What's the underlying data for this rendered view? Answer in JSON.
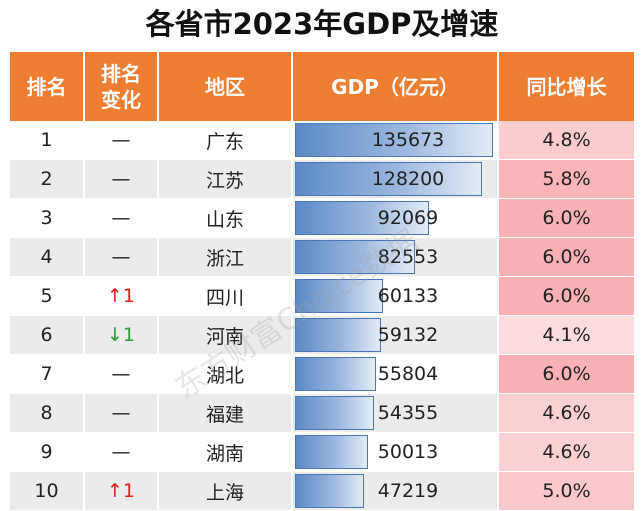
{
  "title": "各省市2023年GDP及增速",
  "headers": [
    "排名",
    "排名\n变化",
    "地区",
    "GDP（亿元）",
    "同比增长"
  ],
  "max_gdp": 135673,
  "rows": [
    {
      "rank": "1",
      "change": "—",
      "dir": "none",
      "region": "广东",
      "gdp": "135673",
      "gdp_num": 135673,
      "growth": "4.8%",
      "growth_num": 4.8
    },
    {
      "rank": "2",
      "change": "—",
      "dir": "none",
      "region": "江苏",
      "gdp": "128200",
      "gdp_num": 128200,
      "growth": "5.8%",
      "growth_num": 5.8
    },
    {
      "rank": "3",
      "change": "—",
      "dir": "none",
      "region": "山东",
      "gdp": "92069",
      "gdp_num": 92069,
      "growth": "6.0%",
      "growth_num": 6.0
    },
    {
      "rank": "4",
      "change": "—",
      "dir": "none",
      "region": "浙江",
      "gdp": "82553",
      "gdp_num": 82553,
      "growth": "6.0%",
      "growth_num": 6.0
    },
    {
      "rank": "5",
      "change": "↑1",
      "dir": "up",
      "region": "四川",
      "gdp": "60133",
      "gdp_num": 60133,
      "growth": "6.0%",
      "growth_num": 6.0
    },
    {
      "rank": "6",
      "change": "↓1",
      "dir": "down",
      "region": "河南",
      "gdp": "59132",
      "gdp_num": 59132,
      "growth": "4.1%",
      "growth_num": 4.1
    },
    {
      "rank": "7",
      "change": "—",
      "dir": "none",
      "region": "湖北",
      "gdp": "55804",
      "gdp_num": 55804,
      "growth": "6.0%",
      "growth_num": 6.0
    },
    {
      "rank": "8",
      "change": "—",
      "dir": "none",
      "region": "福建",
      "gdp": "54355",
      "gdp_num": 54355,
      "growth": "4.6%",
      "growth_num": 4.6
    },
    {
      "rank": "9",
      "change": "—",
      "dir": "none",
      "region": "湖南",
      "gdp": "50013",
      "gdp_num": 50013,
      "growth": "4.6%",
      "growth_num": 4.6
    },
    {
      "rank": "10",
      "change": "↑1",
      "dir": "up",
      "region": "上海",
      "gdp": "47219",
      "gdp_num": 47219,
      "growth": "5.0%",
      "growth_num": 5.0
    }
  ],
  "watermark": "东方财富Choice数据",
  "colors": {
    "header": "#ed7d31",
    "up": "#e0201c",
    "down": "#2e9e3a"
  }
}
